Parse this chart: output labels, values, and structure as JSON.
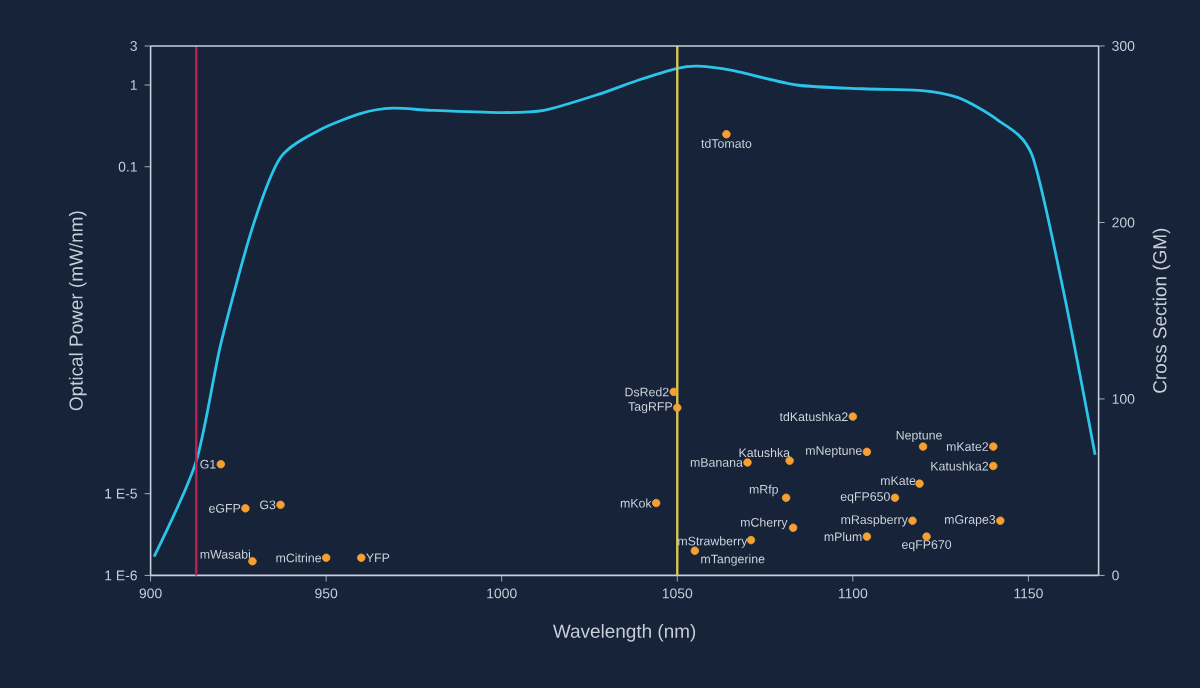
{
  "chart_data": {
    "type": "line",
    "xlabel": "Wavelength (nm)",
    "ylabel": "Optical Power (mW/nm)",
    "y2label": "Cross Section (GM)",
    "log": "y",
    "xlim": [
      900,
      1170
    ],
    "xticks": [
      900,
      950,
      1000,
      1050,
      1100,
      1150
    ],
    "ylim": [
      1e-06,
      3
    ],
    "yticks": [
      3,
      1,
      0.1,
      {
        "value": 1e-05,
        "label": "1 E-5"
      },
      {
        "value": 1e-06,
        "label": "1 E-6"
      }
    ],
    "y2lim": [
      0,
      300
    ],
    "y2ticks": [
      0,
      100,
      200,
      300
    ],
    "series": [
      {
        "color": "#2bc4ea",
        "x": [
          901,
          913,
          920,
          929,
          937,
          948,
          960,
          969,
          980,
          999,
          1012,
          1028,
          1039,
          1050,
          1056,
          1066,
          1084,
          1103,
          1119,
          1130,
          1141,
          1151,
          1160,
          1169
        ],
        "values": [
          1.7e-06,
          2.5e-05,
          0.00068,
          0.018,
          0.13,
          0.28,
          0.45,
          0.52,
          0.49,
          0.46,
          0.49,
          0.78,
          1.15,
          1.6,
          1.7,
          1.5,
          1.0,
          0.9,
          0.86,
          0.7,
          0.38,
          0.14,
          0.003,
          3e-05
        ]
      },
      {
        "type": "scatter",
        "axis": "y2",
        "color": "#f5a030",
        "marker": "circle",
        "x": [
          920,
          927,
          937,
          929,
          950,
          960,
          1049,
          1050,
          1100,
          1082,
          1104,
          1120,
          1140,
          1140,
          1070,
          1119,
          1112,
          1081,
          1044,
          1117,
          1142,
          1083,
          1104,
          1121,
          1071,
          1055,
          1064
        ],
        "values": [
          63,
          38,
          40,
          8,
          10,
          10,
          104,
          95,
          90,
          65,
          70,
          73,
          73,
          62,
          64,
          52,
          44,
          44,
          41,
          31,
          31,
          27,
          22,
          22,
          20,
          14,
          250
        ]
      }
    ],
    "ref_lines": [
      {
        "axis": "x",
        "value": 913,
        "color": "#c02050"
      },
      {
        "axis": "x",
        "value": 1050,
        "color": "#d8c850"
      }
    ],
    "annotations": [
      "G1",
      "eGFP",
      "G3",
      "mWasabi",
      "mCitrine",
      "YFP",
      "DsRed2",
      "TagRFP",
      "tdKatushka2",
      "Katushka",
      "mNeptune",
      "Neptune",
      "mKate2",
      "Katushka2",
      "mBanana",
      "mKate",
      "eqFP650",
      "mRfp",
      "mKok",
      "mRaspberry",
      "mGrape3",
      "mCherry",
      "mPlum",
      "eqFP670",
      "mStrawberry",
      "mTangerine",
      "tdTomato"
    ]
  }
}
